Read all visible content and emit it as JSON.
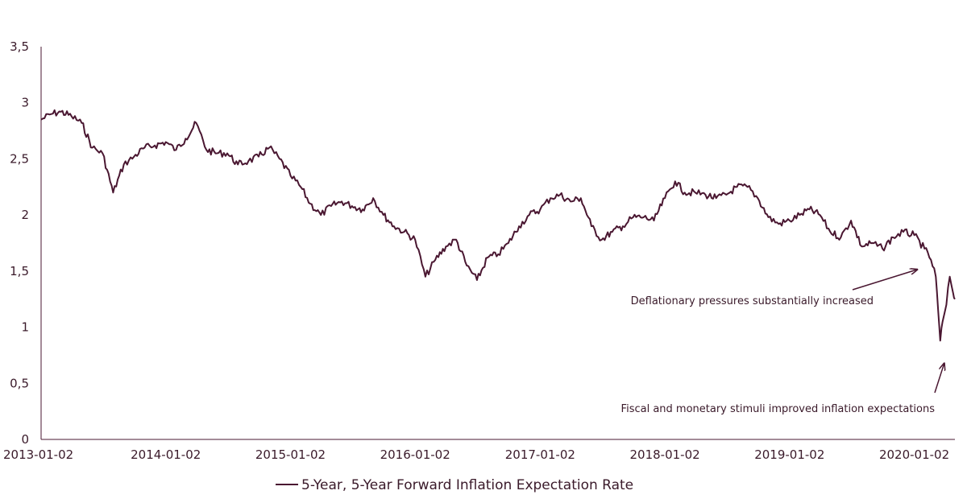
{
  "chart_data": {
    "type": "line",
    "title": "",
    "xlabel": "",
    "ylabel": "",
    "ylim": [
      0,
      3.5
    ],
    "y_ticks": [
      "0",
      "0,5",
      "1",
      "1,5",
      "2",
      "2,5",
      "3",
      "3,5"
    ],
    "x_ticks": [
      "2013-01-02",
      "2014-01-02",
      "2015-01-02",
      "2016-01-02",
      "2017-01-02",
      "2018-01-02",
      "2019-01-02",
      "2020-01-02"
    ],
    "legend": "bottom-center",
    "grid": false,
    "series": [
      {
        "name": "5-Year, 5-Year Forward Inflation Expectation Rate",
        "color": "#4a1731",
        "points": [
          [
            "2013-01-02",
            2.85
          ],
          [
            "2013-02-01",
            2.9
          ],
          [
            "2013-03-01",
            2.92
          ],
          [
            "2013-04-01",
            2.88
          ],
          [
            "2013-05-01",
            2.82
          ],
          [
            "2013-06-01",
            2.6
          ],
          [
            "2013-07-01",
            2.55
          ],
          [
            "2013-08-01",
            2.2
          ],
          [
            "2013-09-01",
            2.45
          ],
          [
            "2013-10-01",
            2.52
          ],
          [
            "2013-11-01",
            2.6
          ],
          [
            "2013-12-01",
            2.62
          ],
          [
            "2014-01-02",
            2.65
          ],
          [
            "2014-02-01",
            2.58
          ],
          [
            "2014-03-01",
            2.68
          ],
          [
            "2014-04-01",
            2.82
          ],
          [
            "2014-05-01",
            2.58
          ],
          [
            "2014-06-01",
            2.55
          ],
          [
            "2014-07-01",
            2.55
          ],
          [
            "2014-08-01",
            2.45
          ],
          [
            "2014-09-01",
            2.48
          ],
          [
            "2014-10-01",
            2.52
          ],
          [
            "2014-11-01",
            2.6
          ],
          [
            "2014-12-01",
            2.5
          ],
          [
            "2015-01-02",
            2.35
          ],
          [
            "2015-02-01",
            2.25
          ],
          [
            "2015-03-01",
            2.1
          ],
          [
            "2015-04-01",
            2.0
          ],
          [
            "2015-05-01",
            2.08
          ],
          [
            "2015-06-01",
            2.12
          ],
          [
            "2015-07-01",
            2.08
          ],
          [
            "2015-08-01",
            2.05
          ],
          [
            "2015-09-01",
            2.15
          ],
          [
            "2015-10-01",
            2.0
          ],
          [
            "2015-11-01",
            1.9
          ],
          [
            "2015-12-01",
            1.85
          ],
          [
            "2016-01-02",
            1.78
          ],
          [
            "2016-02-01",
            1.45
          ],
          [
            "2016-03-01",
            1.6
          ],
          [
            "2016-04-01",
            1.72
          ],
          [
            "2016-05-01",
            1.78
          ],
          [
            "2016-06-01",
            1.55
          ],
          [
            "2016-07-01",
            1.42
          ],
          [
            "2016-08-01",
            1.62
          ],
          [
            "2016-09-01",
            1.65
          ],
          [
            "2016-10-01",
            1.75
          ],
          [
            "2016-11-01",
            1.9
          ],
          [
            "2016-12-01",
            2.0
          ],
          [
            "2017-01-02",
            2.05
          ],
          [
            "2017-02-01",
            2.15
          ],
          [
            "2017-03-01",
            2.18
          ],
          [
            "2017-04-01",
            2.12
          ],
          [
            "2017-05-01",
            2.15
          ],
          [
            "2017-06-01",
            1.9
          ],
          [
            "2017-07-01",
            1.78
          ],
          [
            "2017-08-01",
            1.85
          ],
          [
            "2017-09-01",
            1.9
          ],
          [
            "2017-10-01",
            1.98
          ],
          [
            "2017-11-01",
            1.98
          ],
          [
            "2017-12-01",
            1.95
          ],
          [
            "2018-01-02",
            2.15
          ],
          [
            "2018-02-01",
            2.3
          ],
          [
            "2018-03-01",
            2.2
          ],
          [
            "2018-04-01",
            2.2
          ],
          [
            "2018-05-01",
            2.18
          ],
          [
            "2018-06-01",
            2.15
          ],
          [
            "2018-07-01",
            2.18
          ],
          [
            "2018-08-01",
            2.25
          ],
          [
            "2018-09-01",
            2.25
          ],
          [
            "2018-10-01",
            2.15
          ],
          [
            "2018-11-01",
            1.98
          ],
          [
            "2018-12-01",
            1.92
          ],
          [
            "2019-01-02",
            1.95
          ],
          [
            "2019-02-01",
            2.0
          ],
          [
            "2019-03-01",
            2.05
          ],
          [
            "2019-04-01",
            2.0
          ],
          [
            "2019-05-01",
            1.85
          ],
          [
            "2019-06-01",
            1.8
          ],
          [
            "2019-07-01",
            1.95
          ],
          [
            "2019-08-01",
            1.72
          ],
          [
            "2019-09-01",
            1.75
          ],
          [
            "2019-10-01",
            1.7
          ],
          [
            "2019-11-01",
            1.8
          ],
          [
            "2019-12-01",
            1.85
          ],
          [
            "2020-01-02",
            1.82
          ],
          [
            "2020-02-01",
            1.7
          ],
          [
            "2020-02-20",
            1.6
          ],
          [
            "2020-03-05",
            1.45
          ],
          [
            "2020-03-12",
            1.15
          ],
          [
            "2020-03-18",
            0.88
          ],
          [
            "2020-03-25",
            1.05
          ],
          [
            "2020-04-05",
            1.2
          ],
          [
            "2020-04-15",
            1.45
          ],
          [
            "2020-04-25",
            1.3
          ],
          [
            "2020-04-30",
            1.25
          ]
        ]
      }
    ],
    "annotations": [
      {
        "text": "Deflationary pressures substantially increased",
        "target_x": "2020-01-25",
        "target_y": 1.55
      },
      {
        "text": "Fiscal and monetary stimuli improved inflation expectations",
        "target_x": "2020-03-25",
        "target_y": 0.75
      }
    ]
  }
}
